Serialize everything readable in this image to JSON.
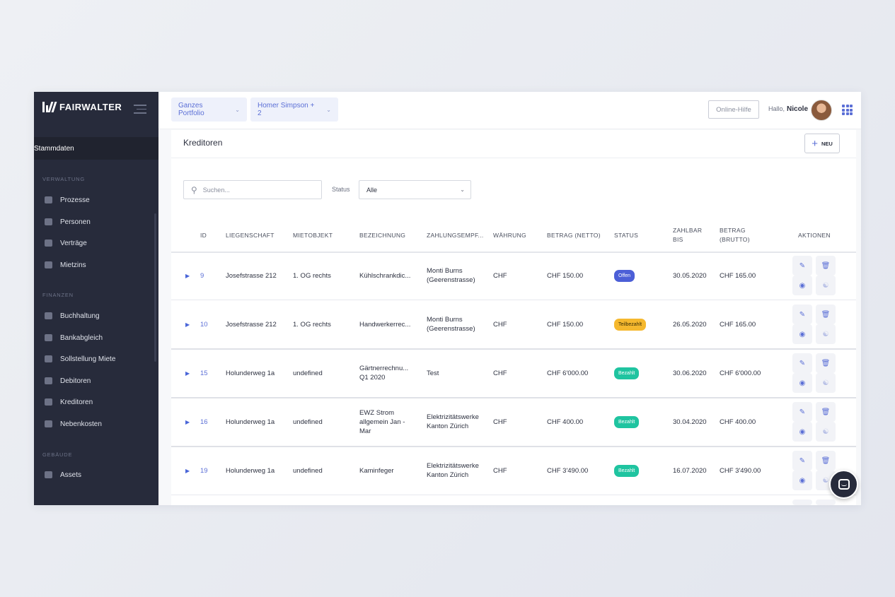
{
  "sidebar": {
    "brand": "FAIRWALTER",
    "active_item": "Stammdaten",
    "sections": [
      {
        "title": "VERWALTUNG",
        "items": [
          "Prozesse",
          "Personen",
          "Verträge",
          "Mietzins"
        ]
      },
      {
        "title": "FINANZEN",
        "items": [
          "Buchhaltung",
          "Bankabgleich",
          "Sollstellung Miete",
          "Debitoren",
          "Kreditoren",
          "Nebenkosten"
        ]
      },
      {
        "title": "GEBÄUDE",
        "items": [
          "Assets"
        ]
      }
    ]
  },
  "topbar": {
    "portfolio_filter": "Ganzes Portfolio",
    "owner_filter": "Homer Simpson + 2",
    "help_button": "Online-Hilfe",
    "greeting": "Hallo,",
    "user_name": "Nicole"
  },
  "page": {
    "title": "Kreditoren",
    "new_button": "NEU",
    "search_placeholder": "Suchen...",
    "status_label": "Status",
    "status_value": "Alle"
  },
  "table": {
    "columns": [
      "ID",
      "LIEGENSCHAFT",
      "MIETOBJEKT",
      "BEZEICHNUNG",
      "ZAHLUNGSEMPF...",
      "WÄHRUNG",
      "BETRAG (NETTO)",
      "STATUS",
      "ZAHLBAR BIS",
      "BETRAG (BRUTTO)",
      "AKTIONEN"
    ],
    "rows": [
      {
        "id": "9",
        "liegenschaft": "Josefstrasse 212",
        "mietobjekt": "1. OG rechts",
        "bezeichnung": "Kühlschrankdic...",
        "empfaenger": "Monti Burns (Geerenstrasse)",
        "waehrung": "CHF",
        "netto": "CHF 150.00",
        "status": "Offen",
        "zahlbar": "30.05.2020",
        "brutto": "CHF 165.00"
      },
      {
        "id": "10",
        "liegenschaft": "Josefstrasse 212",
        "mietobjekt": "1. OG rechts",
        "bezeichnung": "Handwerkerrec...",
        "empfaenger": "Monti Burns (Geerenstrasse)",
        "waehrung": "CHF",
        "netto": "CHF 150.00",
        "status": "Teilbezahlt",
        "zahlbar": "26.05.2020",
        "brutto": "CHF 165.00"
      },
      {
        "id": "15",
        "liegenschaft": "Holunderweg 1a",
        "mietobjekt": "undefined",
        "bezeichnung": "Gärtnerrechnu... Q1 2020",
        "empfaenger": "Test",
        "waehrung": "CHF",
        "netto": "CHF 6'000.00",
        "status": "Bezahlt",
        "zahlbar": "30.06.2020",
        "brutto": "CHF 6'000.00"
      },
      {
        "id": "16",
        "liegenschaft": "Holunderweg 1a",
        "mietobjekt": "undefined",
        "bezeichnung": "EWZ Strom allgemein Jan - Mar",
        "empfaenger": "Elektrizitätswerke Kanton Zürich",
        "waehrung": "CHF",
        "netto": "CHF 400.00",
        "status": "Bezahlt",
        "zahlbar": "30.04.2020",
        "brutto": "CHF 400.00"
      },
      {
        "id": "19",
        "liegenschaft": "Holunderweg 1a",
        "mietobjekt": "undefined",
        "bezeichnung": "Kaminfeger",
        "empfaenger": "Elektrizitätswerke Kanton Zürich",
        "waehrung": "CHF",
        "netto": "CHF 3'490.00",
        "status": "Bezahlt",
        "zahlbar": "16.07.2020",
        "brutto": "CHF 3'490.00"
      }
    ]
  },
  "status_colors": {
    "Offen": "#4c5fd7",
    "Teilbezahlt": "#f5b82e",
    "Bezahlt": "#1fc4a0"
  },
  "accent_color": "#5b6fd6"
}
